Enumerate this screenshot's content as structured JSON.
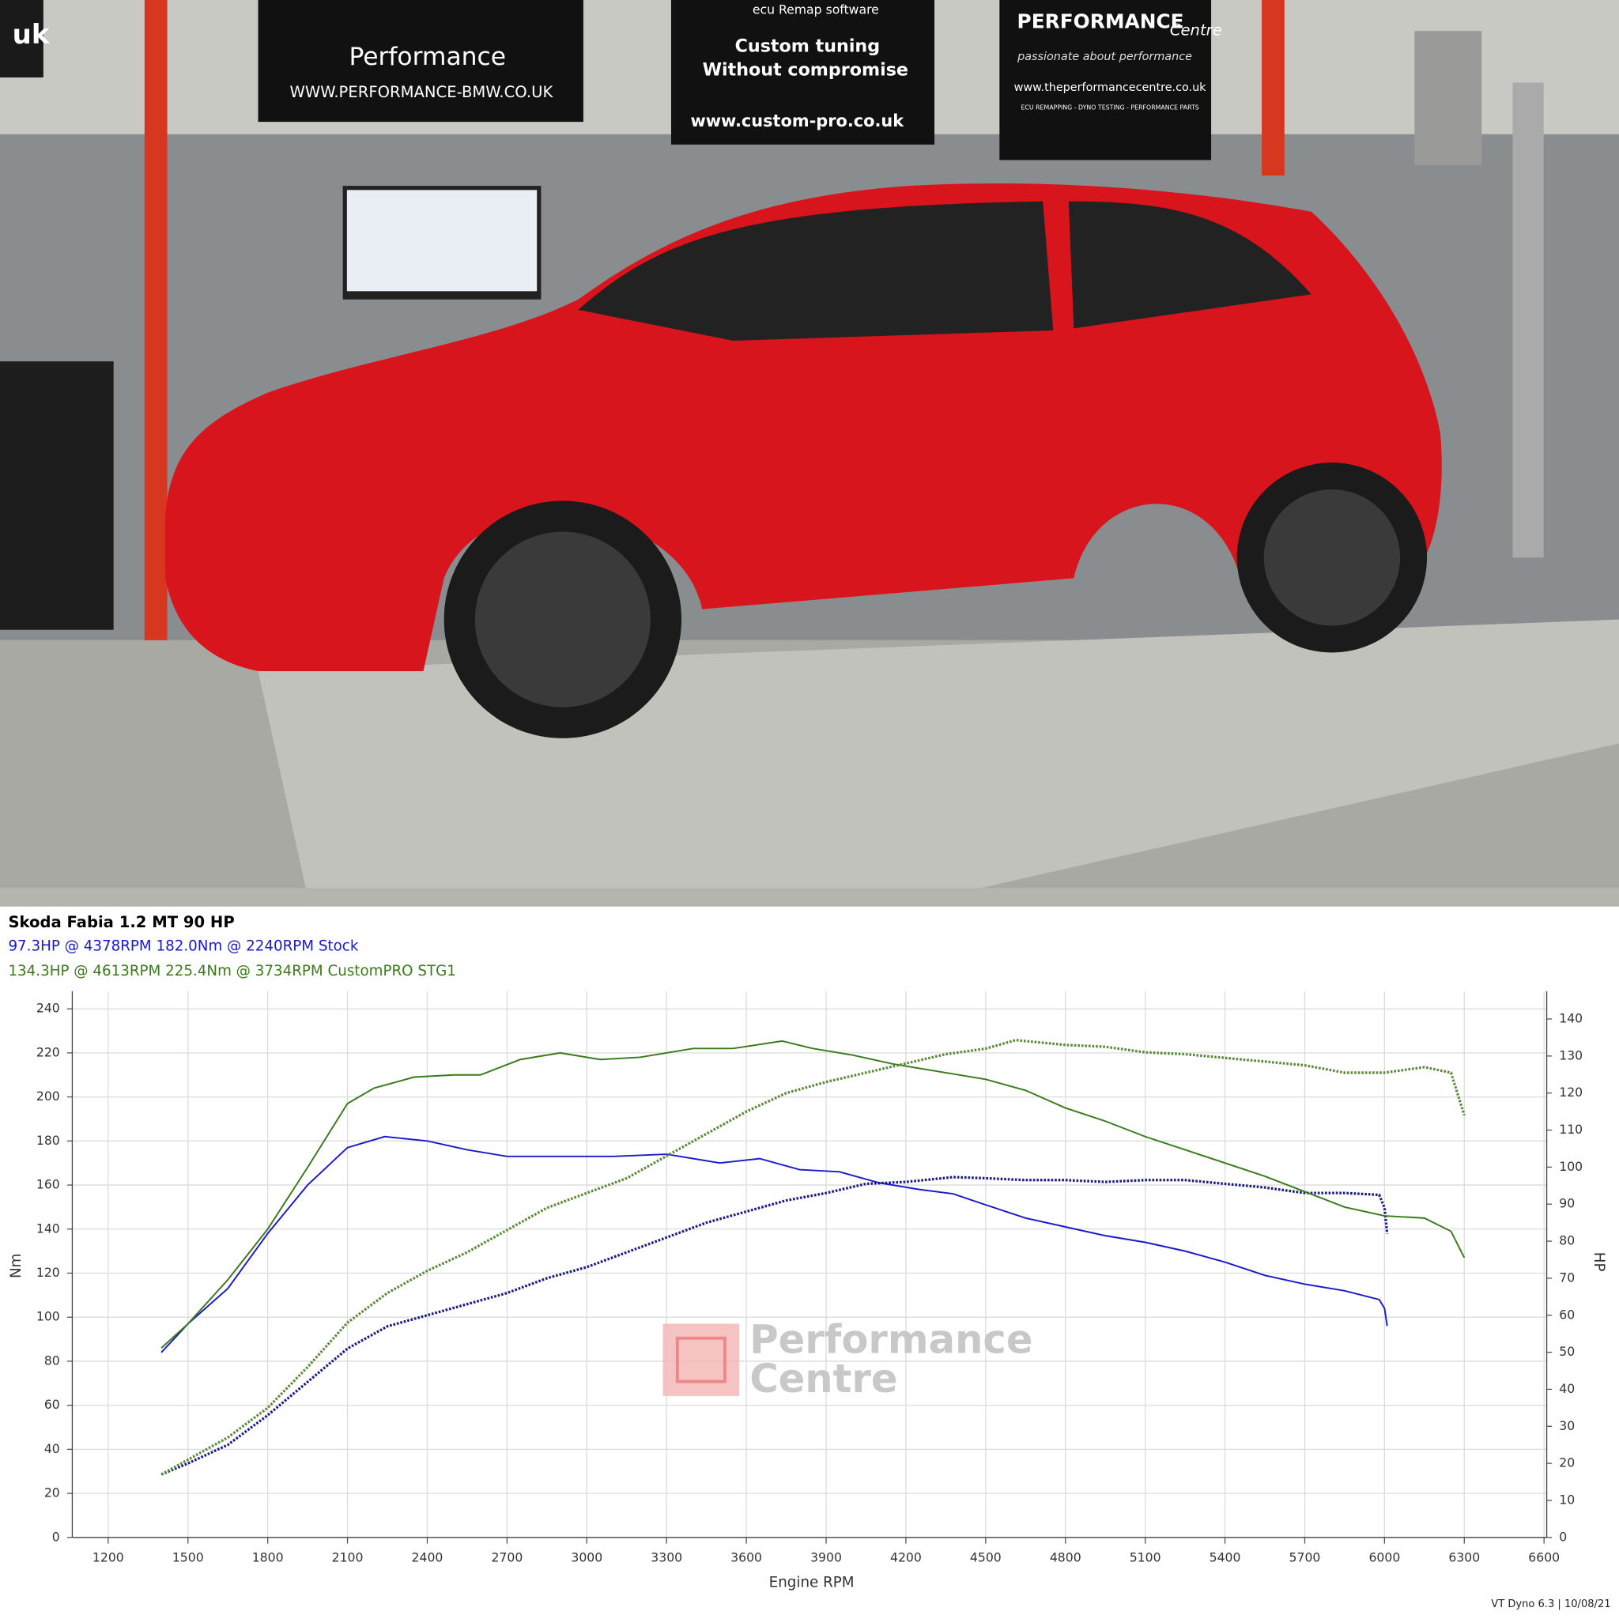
{
  "photo": {
    "signs": {
      "left_domain": "uk",
      "bmw_name": "Performance",
      "bmw_url": "WWW.PERFORMANCE-BMW.CO.UK",
      "cp_top": "ecu Remap software",
      "cp_line1": "Custom tuning",
      "cp_line2": "Without compromise",
      "cp_url": "www.custom-pro.co.uk",
      "pc_name": "PERFORMANCE",
      "pc_centre": "Centre",
      "pc_slogan": "passionate about performance",
      "pc_url": "www.theperformancecentre.co.uk",
      "pc_services": "ECU REMAPPING - DYNO TESTING - PERFORMANCE PARTS"
    }
  },
  "chart_data": {
    "type": "line",
    "title": "Skoda Fabia 1.2 MT 90 HP",
    "annotations": [
      {
        "text": "97.3HP @ 4378RPM 182.0Nm @ 2240RPM  Stock",
        "color": "#1a1acc"
      },
      {
        "text": "134.3HP @ 4613RPM 225.4Nm @ 3734RPM  CustomPRO STG1",
        "color": "#3a7a1a"
      }
    ],
    "xlabel": "Engine RPM",
    "ylabel": "Nm",
    "y2label": "HP",
    "watermark": [
      "Performance",
      "Centre"
    ],
    "footer": "VT Dyno 6.3 | 10/08/21",
    "xlim": [
      1065,
      6610
    ],
    "ylim": [
      0,
      248
    ],
    "y2lim": [
      0,
      147.5
    ],
    "xticks": [
      1200,
      1500,
      1800,
      2100,
      2400,
      2700,
      3000,
      3300,
      3600,
      3900,
      4200,
      4500,
      4800,
      5100,
      5400,
      5700,
      6000,
      6300,
      6600
    ],
    "yticks": [
      0,
      20,
      40,
      60,
      80,
      100,
      120,
      140,
      160,
      180,
      200,
      220,
      240
    ],
    "y2ticks": [
      0,
      10,
      20,
      30,
      40,
      50,
      60,
      70,
      80,
      90,
      100,
      110,
      120,
      130,
      140
    ],
    "grid": true,
    "series": [
      {
        "color": "#1a1acc",
        "dash": "solid",
        "axis": "y",
        "x": [
          1400,
          1500,
          1650,
          1800,
          1950,
          2100,
          2240,
          2400,
          2550,
          2700,
          2900,
          3100,
          3300,
          3500,
          3650,
          3800,
          3950,
          4100,
          4250,
          4378,
          4500,
          4650,
          4800,
          4950,
          5100,
          5250,
          5400,
          5550,
          5700,
          5850,
          5980,
          6000,
          6010
        ],
        "values": [
          84,
          97,
          113,
          138,
          160,
          177,
          182,
          180,
          176,
          173,
          173,
          173,
          174,
          170,
          172,
          167,
          166,
          161,
          158,
          156,
          151,
          145,
          141,
          137,
          134,
          130,
          125,
          119,
          115,
          112,
          108,
          104,
          96
        ]
      },
      {
        "color": "#1a1a88",
        "dash": "dotted",
        "axis": "y2",
        "x": [
          1400,
          1500,
          1650,
          1800,
          1950,
          2100,
          2250,
          2400,
          2550,
          2700,
          2850,
          3000,
          3150,
          3300,
          3450,
          3600,
          3750,
          3900,
          4050,
          4200,
          4378,
          4500,
          4650,
          4800,
          4950,
          5100,
          5250,
          5400,
          5550,
          5700,
          5850,
          5980,
          6000,
          6010
        ],
        "values": [
          17,
          20,
          25,
          33,
          42,
          51,
          57,
          60,
          63,
          66,
          70,
          73,
          77,
          81,
          85,
          88,
          91,
          93,
          95.5,
          96,
          97.3,
          97,
          96.5,
          96.5,
          96,
          96.5,
          96.5,
          95.5,
          94.5,
          93,
          93,
          92.5,
          89,
          82
        ]
      },
      {
        "color": "#3a7a1a",
        "dash": "solid",
        "axis": "y",
        "x": [
          1400,
          1500,
          1650,
          1800,
          1950,
          2100,
          2200,
          2350,
          2500,
          2600,
          2750,
          2900,
          3050,
          3200,
          3400,
          3550,
          3734,
          3850,
          4000,
          4150,
          4300,
          4500,
          4650,
          4800,
          4950,
          5100,
          5250,
          5400,
          5550,
          5700,
          5850,
          6000,
          6150,
          6250,
          6300
        ],
        "values": [
          86,
          97,
          117,
          140,
          168,
          197,
          204,
          209,
          210,
          210,
          217,
          220,
          217,
          218,
          222,
          222,
          225.4,
          222,
          219,
          215,
          212,
          208,
          203,
          195,
          189,
          182,
          176,
          170,
          164,
          157,
          150,
          146,
          145,
          139,
          127
        ]
      },
      {
        "color": "#5a8a3a",
        "dash": "dotted",
        "axis": "y2",
        "x": [
          1400,
          1500,
          1650,
          1800,
          1950,
          2100,
          2250,
          2400,
          2550,
          2700,
          2850,
          3000,
          3150,
          3300,
          3450,
          3600,
          3750,
          3900,
          4050,
          4200,
          4350,
          4500,
          4613,
          4800,
          4950,
          5100,
          5250,
          5400,
          5550,
          5700,
          5850,
          6000,
          6150,
          6250,
          6300
        ],
        "values": [
          17,
          21,
          27,
          35,
          46,
          58,
          66,
          72,
          77,
          83,
          89,
          93,
          97,
          103,
          109,
          115,
          120,
          123,
          125.5,
          128,
          130.5,
          132,
          134.3,
          133,
          132.5,
          131,
          130.5,
          129.5,
          128.5,
          127.5,
          125.5,
          125.5,
          127,
          125.5,
          114
        ]
      }
    ]
  }
}
